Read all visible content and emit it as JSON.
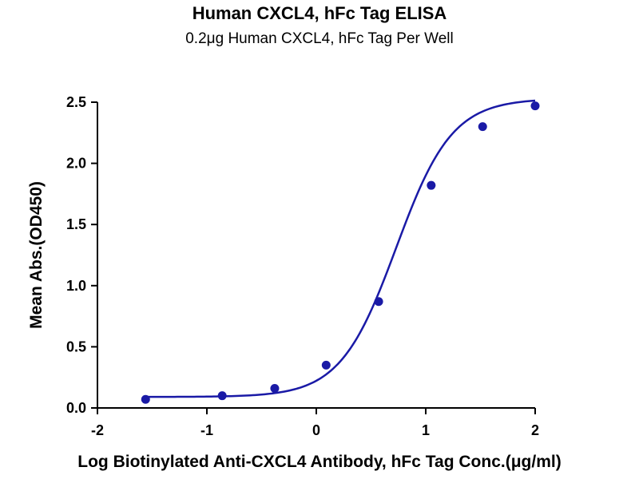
{
  "chart_data": {
    "type": "scatter",
    "title": "Human CXCL4, hFc Tag ELISA",
    "subtitle": "0.2μg Human CXCL4, hFc Tag Per Well",
    "xlabel": "Log Biotinylated Anti-CXCL4 Antibody, hFc Tag Conc.(μg/ml)",
    "ylabel": "Mean Abs.(OD450)",
    "xlim": [
      -2,
      2
    ],
    "ylim": [
      0,
      2.5
    ],
    "x_ticks": [
      "-2",
      "-1",
      "0",
      "1",
      "2"
    ],
    "y_ticks": [
      "0.0",
      "0.5",
      "1.0",
      "1.5",
      "2.0",
      "2.5"
    ],
    "grid": false,
    "color": "#1a1aa6",
    "series": [
      {
        "x": [
          -1.56,
          -0.86,
          -0.38,
          0.09,
          0.57,
          1.05,
          1.52,
          2.0
        ],
        "y": [
          0.07,
          0.1,
          0.16,
          0.35,
          0.87,
          1.82,
          2.3,
          2.47
        ]
      }
    ],
    "fit": {
      "type": "4PL",
      "bottom": 0.09,
      "top": 2.53,
      "logEC50": 0.73,
      "hill": 1.7
    }
  }
}
